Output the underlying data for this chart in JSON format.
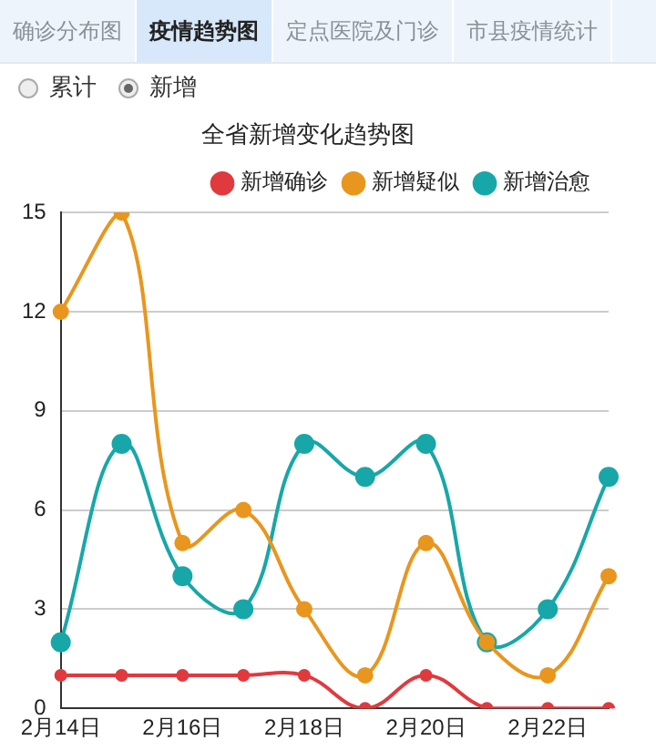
{
  "chart_data": {
    "type": "line",
    "title": "全省新增变化趋势图",
    "annotations": [
      "确诊分布图",
      "疫情趋势图",
      "定点医院及门诊",
      "市县疫情统计",
      "累计",
      "新增"
    ],
    "categories": [
      "2月14日",
      null,
      "2月16日",
      null,
      "2月18日",
      null,
      "2月20日",
      null,
      "2月22日",
      null
    ],
    "series": [
      {
        "name": "新增确诊",
        "color": "#e03a3e",
        "values": [
          1,
          1,
          1,
          1,
          1,
          0,
          1,
          0,
          0,
          0
        ]
      },
      {
        "name": "新增疑似",
        "color": "#e8961e",
        "values": [
          12,
          15,
          5,
          6,
          3,
          1,
          5,
          2,
          1,
          4
        ]
      },
      {
        "name": "新增治愈",
        "color": "#18a7a8",
        "values": [
          2,
          8,
          4,
          3,
          8,
          7,
          8,
          2,
          3,
          7
        ]
      }
    ],
    "ylim": [
      0,
      15
    ],
    "yticks": [
      0,
      3,
      6,
      9,
      12,
      15
    ],
    "grid": "y",
    "legend": "top right",
    "marker": "circle"
  }
}
